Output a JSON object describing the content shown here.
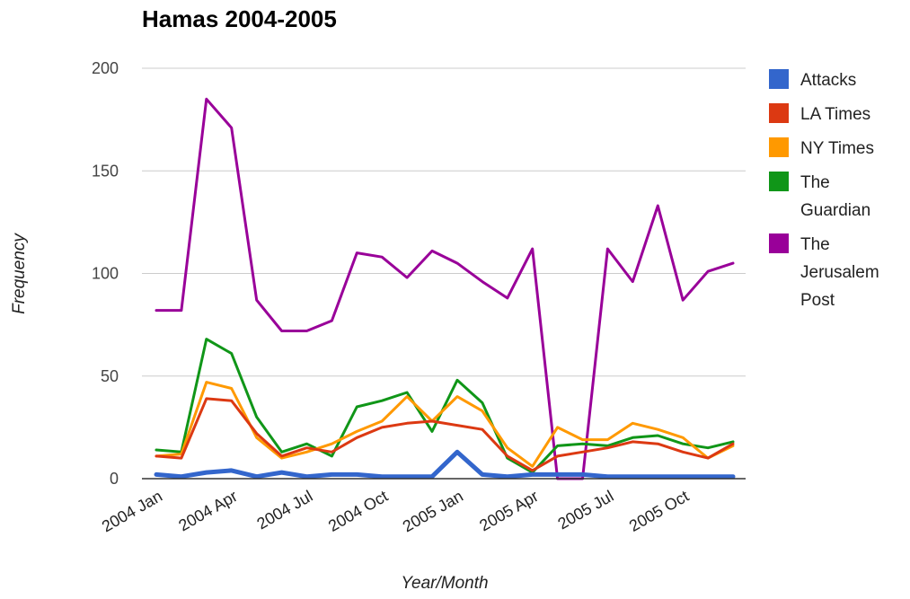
{
  "chart_data": {
    "type": "line",
    "title": "Hamas 2004-2005",
    "xlabel": "Year/Month",
    "ylabel": "Frequency",
    "ylim": [
      0,
      200
    ],
    "yticks": [
      "0",
      "50",
      "100",
      "150",
      "200"
    ],
    "x": [
      "2004 Jan",
      "2004 Feb",
      "2004 Mar",
      "2004 Apr",
      "2004 May",
      "2004 Jun",
      "2004 Jul",
      "2004 Aug",
      "2004 Sep",
      "2004 Oct",
      "2004 Nov",
      "2004 Dec",
      "2005 Jan",
      "2005 Feb",
      "2005 Mar",
      "2005 Apr",
      "2005 May",
      "2005 Jun",
      "2005 Jul",
      "2005 Aug",
      "2005 Sep",
      "2005 Oct",
      "2005 Nov",
      "2005 Dec"
    ],
    "xtick_labels": [
      "2004 Jan",
      "2004 Apr",
      "2004 Jul",
      "2004 Oct",
      "2005 Jan",
      "2005 Apr",
      "2005 Jul",
      "2005 Oct"
    ],
    "grid": true,
    "legend_position": "right",
    "series": [
      {
        "name": "Attacks",
        "color": "#3366cc",
        "values": [
          2,
          1,
          3,
          4,
          1,
          3,
          1,
          2,
          2,
          1,
          1,
          1,
          13,
          2,
          1,
          2,
          2,
          2,
          1,
          1,
          1,
          1,
          1,
          1
        ]
      },
      {
        "name": "LA Times",
        "color": "#dc3912",
        "values": [
          11,
          10,
          39,
          38,
          22,
          11,
          15,
          13,
          20,
          25,
          27,
          28,
          26,
          24,
          11,
          4,
          11,
          13,
          15,
          18,
          17,
          13,
          10,
          17
        ]
      },
      {
        "name": "NY Times",
        "color": "#ff9900",
        "values": [
          11,
          12,
          47,
          44,
          20,
          10,
          13,
          17,
          23,
          28,
          40,
          28,
          40,
          33,
          15,
          6,
          25,
          19,
          19,
          27,
          24,
          20,
          10,
          16
        ]
      },
      {
        "name": "The Guardian",
        "color": "#109618",
        "values": [
          14,
          13,
          68,
          61,
          30,
          13,
          17,
          11,
          35,
          38,
          42,
          23,
          48,
          37,
          10,
          3,
          16,
          17,
          16,
          20,
          21,
          17,
          15,
          18
        ]
      },
      {
        "name": "The Jerusalem Post",
        "color": "#990099",
        "values": [
          82,
          82,
          185,
          171,
          87,
          72,
          72,
          77,
          110,
          108,
          98,
          111,
          105,
          96,
          88,
          112,
          0,
          0,
          112,
          96,
          133,
          87,
          101,
          105
        ]
      }
    ]
  }
}
